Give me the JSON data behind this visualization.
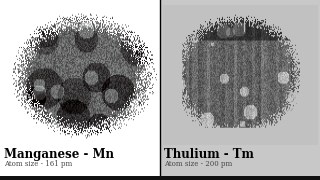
{
  "left_element_name": "Manganese - Mn",
  "left_atom_size": "Atom size - 161 pm",
  "right_element_name": "Thulium - Tm",
  "right_atom_size": "Atom size - 200 pm",
  "left_bg": "#ffffff",
  "right_bg": "#c8c8c8",
  "divider_color": "#000000",
  "name_fontsize": 8.5,
  "subtext_fontsize": 5.0,
  "text_color": "#000000",
  "subtext_color": "#444444",
  "bottom_bar_color": "#111111",
  "bottom_bar_height": 4,
  "fig_width": 3.2,
  "fig_height": 1.8,
  "dpi": 100
}
